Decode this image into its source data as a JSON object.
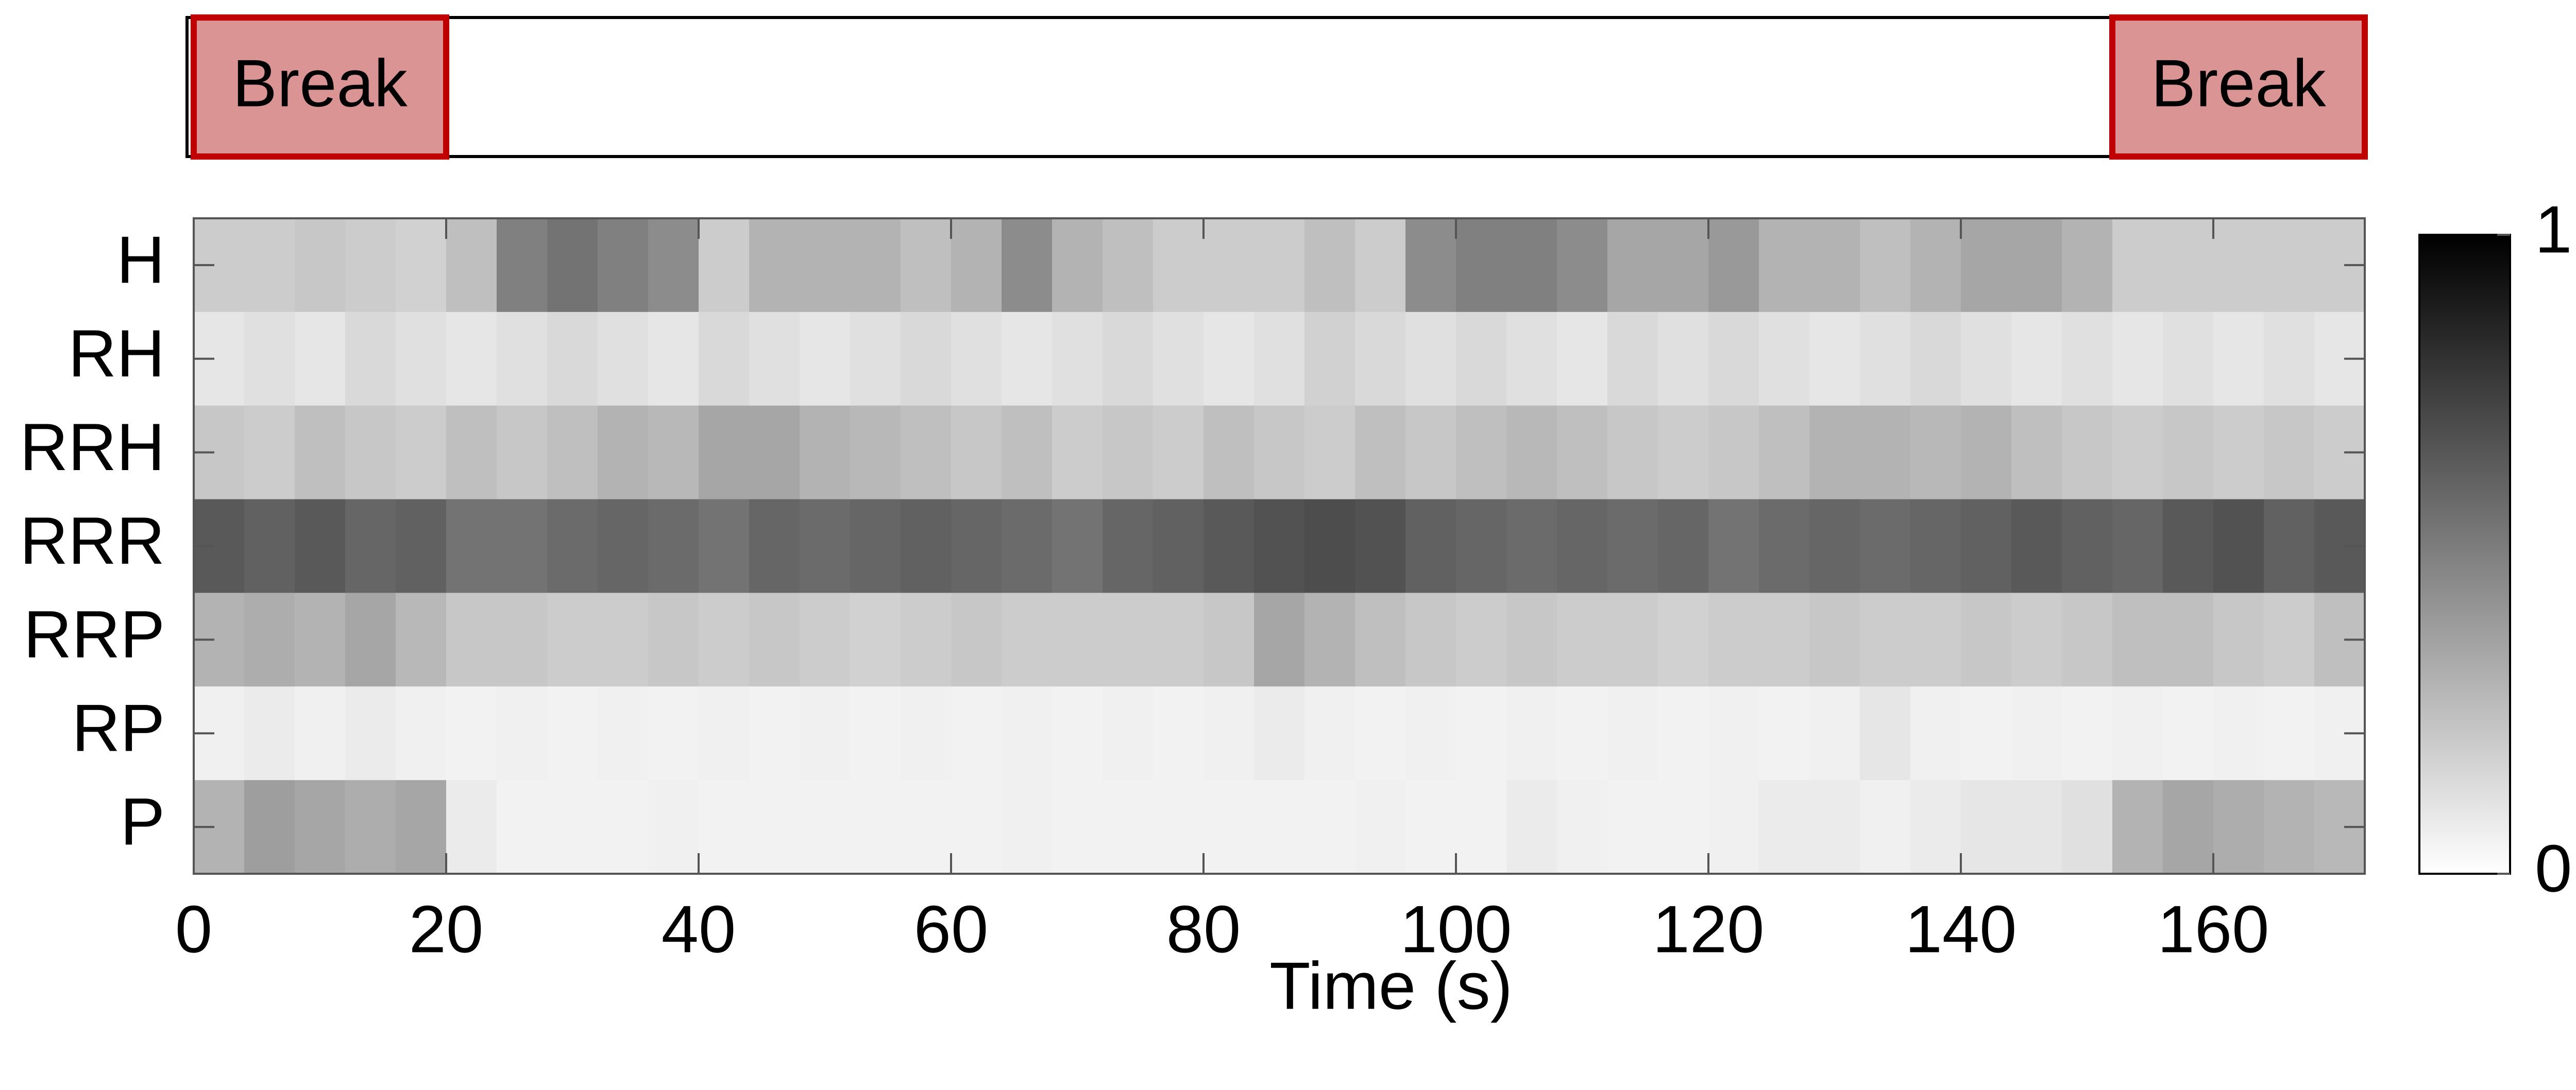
{
  "chart_data": {
    "type": "heatmap",
    "xlabel": "Time (s)",
    "categories": [
      "H",
      "RH",
      "RRH",
      "RRR",
      "RRP",
      "RP",
      "P"
    ],
    "bins": [
      0,
      4,
      8,
      12,
      16,
      20,
      24,
      28,
      32,
      36,
      40,
      44,
      48,
      52,
      56,
      60,
      64,
      68,
      72,
      76,
      80,
      84,
      88,
      92,
      96,
      100,
      104,
      108,
      112,
      116,
      120,
      124,
      128,
      132,
      136,
      140,
      144,
      148,
      152,
      156,
      160,
      164,
      168,
      172
    ],
    "values": [
      [
        0.2,
        0.2,
        0.22,
        0.2,
        0.18,
        0.25,
        0.5,
        0.55,
        0.5,
        0.45,
        0.2,
        0.3,
        0.3,
        0.3,
        0.25,
        0.3,
        0.45,
        0.3,
        0.25,
        0.2,
        0.2,
        0.2,
        0.25,
        0.2,
        0.45,
        0.5,
        0.5,
        0.45,
        0.35,
        0.35,
        0.4,
        0.3,
        0.3,
        0.25,
        0.3,
        0.35,
        0.35,
        0.3,
        0.2,
        0.2,
        0.2,
        0.2,
        0.2
      ],
      [
        0.1,
        0.12,
        0.1,
        0.15,
        0.12,
        0.1,
        0.12,
        0.15,
        0.12,
        0.1,
        0.15,
        0.12,
        0.1,
        0.12,
        0.15,
        0.12,
        0.1,
        0.12,
        0.15,
        0.12,
        0.1,
        0.12,
        0.18,
        0.15,
        0.12,
        0.15,
        0.12,
        0.1,
        0.15,
        0.12,
        0.15,
        0.12,
        0.1,
        0.12,
        0.15,
        0.12,
        0.1,
        0.12,
        0.1,
        0.12,
        0.1,
        0.12,
        0.1
      ],
      [
        0.22,
        0.2,
        0.25,
        0.22,
        0.2,
        0.25,
        0.22,
        0.25,
        0.3,
        0.28,
        0.35,
        0.35,
        0.3,
        0.28,
        0.25,
        0.22,
        0.25,
        0.2,
        0.22,
        0.2,
        0.25,
        0.22,
        0.2,
        0.25,
        0.22,
        0.25,
        0.28,
        0.25,
        0.22,
        0.2,
        0.22,
        0.25,
        0.3,
        0.3,
        0.28,
        0.3,
        0.25,
        0.22,
        0.2,
        0.22,
        0.2,
        0.22,
        0.2
      ],
      [
        0.65,
        0.62,
        0.65,
        0.6,
        0.62,
        0.55,
        0.55,
        0.58,
        0.6,
        0.58,
        0.55,
        0.6,
        0.58,
        0.6,
        0.62,
        0.6,
        0.58,
        0.55,
        0.6,
        0.62,
        0.65,
        0.68,
        0.7,
        0.68,
        0.62,
        0.6,
        0.58,
        0.6,
        0.58,
        0.6,
        0.55,
        0.58,
        0.6,
        0.58,
        0.6,
        0.62,
        0.65,
        0.62,
        0.6,
        0.65,
        0.68,
        0.62,
        0.65
      ],
      [
        0.3,
        0.32,
        0.3,
        0.35,
        0.28,
        0.22,
        0.22,
        0.2,
        0.2,
        0.22,
        0.2,
        0.22,
        0.2,
        0.18,
        0.2,
        0.22,
        0.2,
        0.2,
        0.2,
        0.2,
        0.22,
        0.35,
        0.3,
        0.25,
        0.22,
        0.2,
        0.22,
        0.2,
        0.2,
        0.18,
        0.2,
        0.2,
        0.22,
        0.2,
        0.2,
        0.22,
        0.2,
        0.22,
        0.25,
        0.25,
        0.22,
        0.2,
        0.25
      ],
      [
        0.06,
        0.08,
        0.06,
        0.08,
        0.06,
        0.05,
        0.06,
        0.05,
        0.06,
        0.05,
        0.06,
        0.05,
        0.06,
        0.05,
        0.06,
        0.05,
        0.06,
        0.05,
        0.06,
        0.05,
        0.06,
        0.08,
        0.06,
        0.05,
        0.06,
        0.05,
        0.06,
        0.05,
        0.06,
        0.05,
        0.06,
        0.05,
        0.06,
        0.1,
        0.06,
        0.05,
        0.06,
        0.05,
        0.06,
        0.05,
        0.06,
        0.05,
        0.06
      ],
      [
        0.3,
        0.38,
        0.35,
        0.32,
        0.35,
        0.08,
        0.05,
        0.05,
        0.05,
        0.06,
        0.05,
        0.05,
        0.05,
        0.05,
        0.05,
        0.05,
        0.06,
        0.05,
        0.05,
        0.05,
        0.05,
        0.05,
        0.05,
        0.06,
        0.05,
        0.05,
        0.08,
        0.06,
        0.05,
        0.05,
        0.06,
        0.08,
        0.08,
        0.06,
        0.08,
        0.1,
        0.1,
        0.12,
        0.3,
        0.35,
        0.32,
        0.3,
        0.28
      ]
    ],
    "xlim": [
      0,
      172
    ],
    "xticks": [
      0,
      20,
      40,
      60,
      80,
      100,
      120,
      140,
      160
    ],
    "zlim": [
      0,
      1
    ],
    "zticks": [
      0,
      1
    ],
    "annotations": [
      {
        "label": "Break",
        "start": 0,
        "end": 20
      },
      {
        "label": "Break",
        "start": 152,
        "end": 172
      }
    ]
  }
}
